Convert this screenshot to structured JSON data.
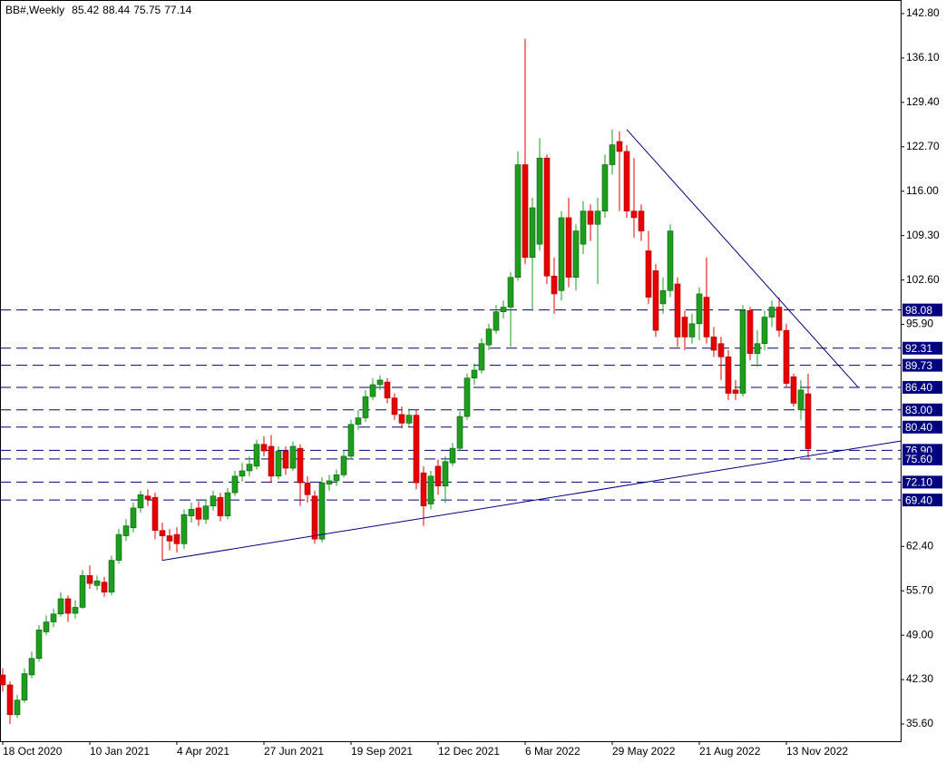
{
  "chart_data": {
    "type": "candlestick",
    "title": "BB#,Weekly",
    "categories": [
      "18 Oct 2020",
      null,
      null,
      null,
      null,
      null,
      null,
      null,
      null,
      null,
      null,
      null,
      "10 Jan 2021",
      null,
      null,
      null,
      null,
      null,
      null,
      null,
      null,
      null,
      null,
      null,
      "4 Apr 2021",
      null,
      null,
      null,
      null,
      null,
      null,
      null,
      null,
      null,
      null,
      null,
      "27 Jun 2021",
      null,
      null,
      null,
      null,
      null,
      null,
      null,
      null,
      null,
      null,
      null,
      "19 Sep 2021",
      null,
      null,
      null,
      null,
      null,
      null,
      null,
      null,
      null,
      null,
      null,
      "12 Dec 2021",
      null,
      null,
      null,
      null,
      null,
      null,
      null,
      null,
      null,
      null,
      null,
      "6 Mar 2022",
      null,
      null,
      null,
      null,
      null,
      null,
      null,
      null,
      null,
      null,
      null,
      "29 May 2022",
      null,
      null,
      null,
      null,
      null,
      null,
      null,
      null,
      null,
      null,
      null,
      "21 Aug 2022",
      null,
      null,
      null,
      null,
      null,
      null,
      null,
      null,
      null,
      null,
      null,
      "13 Nov 2022",
      null,
      null,
      null
    ],
    "open": [
      43.0,
      41.5,
      37.0,
      39.2,
      43.0,
      45.5,
      49.5,
      51.0,
      52.2,
      54.5,
      52.3,
      53.2,
      58.0,
      56.5,
      57.0,
      55.5,
      60.3,
      64.0,
      65.2,
      68.2,
      70.0,
      69.8,
      64.8,
      64.0,
      64.2,
      62.8,
      67.0,
      68.2,
      66.5,
      68.5,
      69.8,
      67.0,
      70.5,
      73.0,
      73.8,
      74.5,
      77.8,
      77.5,
      73.0,
      76.8,
      74.2,
      77.2,
      72.0,
      70.0,
      63.5,
      71.8,
      72.3,
      73.2,
      76.0,
      80.8,
      81.8,
      85.0,
      86.8,
      87.2,
      84.8,
      82.3,
      81.0,
      82.2,
      73.5,
      68.8,
      74.5,
      71.5,
      75.0,
      77.2,
      82.0,
      87.8,
      89.0,
      92.8,
      95.0,
      97.8,
      98.5,
      103.0,
      120.0,
      106.0,
      108.0,
      121.0,
      103.2,
      101.0,
      112.0,
      103.0,
      108.0,
      113.0,
      111.0,
      113.0,
      120.0,
      123.5,
      122.0,
      113.0,
      113.0,
      107.0,
      104.0,
      99.0,
      101.0,
      102.0,
      97.0,
      94.0,
      96.0,
      100.0,
      94.0,
      93.0,
      91.0,
      86.0,
      85.5,
      98.0,
      91.5,
      93.0,
      97.0,
      98.5,
      95.0,
      88.0,
      83.0,
      85.42
    ],
    "high": [
      44,
      42,
      40,
      44,
      46.5,
      50.5,
      52.0,
      53.0,
      55.5,
      55.0,
      54.3,
      58.8,
      59.5,
      58.0,
      57.8,
      61.0,
      65.0,
      66.5,
      69.0,
      70.8,
      71.0,
      70.5,
      66.0,
      65.0,
      65.3,
      68.0,
      69.0,
      69.2,
      69.5,
      70.8,
      70.5,
      71.2,
      73.8,
      75.0,
      76.0,
      78.5,
      79.0,
      79.2,
      77.5,
      77.5,
      78.2,
      77.8,
      73.0,
      70.8,
      72.8,
      73.2,
      74.0,
      76.8,
      81.5,
      83.0,
      86.0,
      87.8,
      88.2,
      87.8,
      85.5,
      83.5,
      83.2,
      83.0,
      74.5,
      73.8,
      75.5,
      76.0,
      78.0,
      82.8,
      88.5,
      90.0,
      93.8,
      96.0,
      98.8,
      99.5,
      103.8,
      122.0,
      139.0,
      115.0,
      124.0,
      121.5,
      106.0,
      113.0,
      115.0,
      111.0,
      114.5,
      114.0,
      115.0,
      121.5,
      125.3,
      125.0,
      123.0,
      121.0,
      114.0,
      110.0,
      105.0,
      103.0,
      111.0,
      103.0,
      98.0,
      97.5,
      101.5,
      106.0,
      95.5,
      94.0,
      92.0,
      87.5,
      98.8,
      98.5,
      95.0,
      98.0,
      99.5,
      100.0,
      96.0,
      88.5,
      87.5,
      88.44
    ],
    "low": [
      40.5,
      35.6,
      36.5,
      38.8,
      42.5,
      45.0,
      49.0,
      50.2,
      51.8,
      51.0,
      51.5,
      53.0,
      56.0,
      55.8,
      54.8,
      55.0,
      59.8,
      63.2,
      64.5,
      67.5,
      68.5,
      63.5,
      60.3,
      61.8,
      61.5,
      62.0,
      66.0,
      65.5,
      65.8,
      67.8,
      66.2,
      66.5,
      70.0,
      72.2,
      73.0,
      74.0,
      76.0,
      72.0,
      72.5,
      73.2,
      73.8,
      68.5,
      69.0,
      62.8,
      63.0,
      70.8,
      71.5,
      72.8,
      75.5,
      80.0,
      81.2,
      84.5,
      86.0,
      84.0,
      81.5,
      80.2,
      80.5,
      71.0,
      65.5,
      68.0,
      70.2,
      69.0,
      74.5,
      76.8,
      81.5,
      86.8,
      88.5,
      92.0,
      94.5,
      96.8,
      92.5,
      102.5,
      105.0,
      98.0,
      107.0,
      102.0,
      97.5,
      99.5,
      101.5,
      101.0,
      106.5,
      108.5,
      102.0,
      112.0,
      118.5,
      113.0,
      112.0,
      109.0,
      108.5,
      99.0,
      94.0,
      97.5,
      100.0,
      92.5,
      92.0,
      93.0,
      93.5,
      93.0,
      91.0,
      87.5,
      84.5,
      84.5,
      85.0,
      90.5,
      89.5,
      92.0,
      95.5,
      94.0,
      86.5,
      83.5,
      81.5,
      75.75
    ],
    "close": [
      41.5,
      37.0,
      39.2,
      43.2,
      45.5,
      49.8,
      51.0,
      52.2,
      54.5,
      52.3,
      53.2,
      58.0,
      56.8,
      57.2,
      55.5,
      60.3,
      64.2,
      65.5,
      68.2,
      70.2,
      69.5,
      64.8,
      64.0,
      63.2,
      62.8,
      67.2,
      68.0,
      66.5,
      68.5,
      70.0,
      67.0,
      70.5,
      73.0,
      73.8,
      74.8,
      77.8,
      76.8,
      73.0,
      76.8,
      74.2,
      77.5,
      72.0,
      70.2,
      63.5,
      72.0,
      72.3,
      73.2,
      76.0,
      80.8,
      81.8,
      85.0,
      86.8,
      87.5,
      84.8,
      82.3,
      81.0,
      82.2,
      72.0,
      68.5,
      73.0,
      71.5,
      75.2,
      77.2,
      82.0,
      87.8,
      89.0,
      93.0,
      95.2,
      97.8,
      98.5,
      103.0,
      120.0,
      106.0,
      113.5,
      121.0,
      103.2,
      100.5,
      112.0,
      103.0,
      110.0,
      113.0,
      111.0,
      113.0,
      120.0,
      123.0,
      122.0,
      113.0,
      112.0,
      110.0,
      100.0,
      95.0,
      101.0,
      110.0,
      94.0,
      94.0,
      96.0,
      100.5,
      94.0,
      92.0,
      91.0,
      85.5,
      85.5,
      98.0,
      91.5,
      93.0,
      97.0,
      98.5,
      95.0,
      87.0,
      84.0,
      86.0,
      77.14
    ],
    "up_color": "#1e9e1e",
    "down_color": "#e60000",
    "xlim": [
      -0.375,
      123.75
    ],
    "ylim": [
      33.0,
      144.85
    ],
    "yticks": [
      {
        "value": 142.8,
        "label": "142.80"
      },
      {
        "value": 136.1,
        "label": "136.10"
      },
      {
        "value": 129.4,
        "label": "129.40"
      },
      {
        "value": 122.7,
        "label": "122.70"
      },
      {
        "value": 116,
        "label": "116.00"
      },
      {
        "value": 109.3,
        "label": "109.30"
      },
      {
        "value": 102.6,
        "label": "102.60"
      },
      {
        "value": 95.9,
        "label": "95.90"
      },
      {
        "value": 62.4,
        "label": "62.40"
      },
      {
        "value": 55.7,
        "label": "55.70"
      },
      {
        "value": 49,
        "label": "49.00"
      },
      {
        "value": 42.3,
        "label": "42.30"
      },
      {
        "value": 35.6,
        "label": "35.60"
      }
    ],
    "levels": [
      98.08,
      92.31,
      89.73,
      {
        "value": 86.4,
        "label": "86.40"
      },
      {
        "value": 83,
        "label": "83.00"
      },
      {
        "value": 80.4,
        "label": "80.40"
      },
      {
        "value": 76.9,
        "label": "76.90"
      },
      {
        "value": 75.6,
        "label": "75.60"
      },
      {
        "value": 72.1,
        "label": "72.10"
      },
      {
        "value": 69.4,
        "label": "69.40"
      }
    ],
    "level_color": "#000080",
    "trendlines": [
      {
        "x": [
          22,
          123.75
        ],
        "y": [
          60.3,
          78.3
        ]
      },
      {
        "x": [
          86,
          117.9
        ],
        "y": [
          125.3,
          86.4
        ]
      }
    ]
  }
}
